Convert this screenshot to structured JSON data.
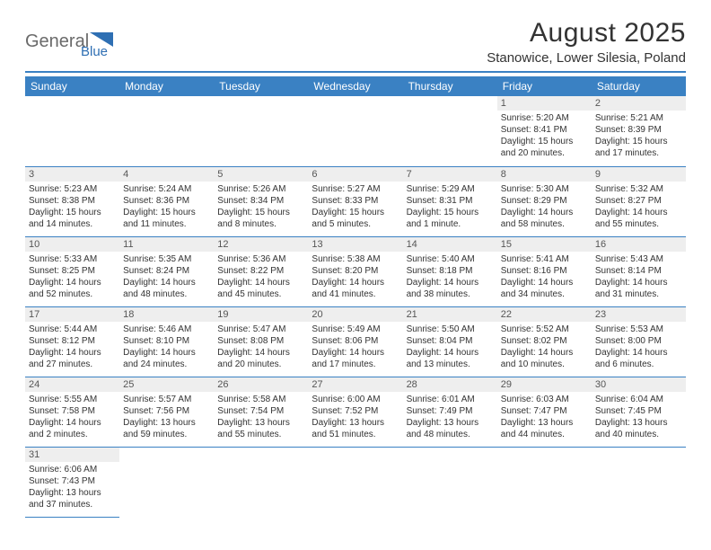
{
  "logo": {
    "text1": "General",
    "text2": "Blue",
    "color1": "#6a6a6a",
    "color2": "#2e6fb3"
  },
  "title": "August 2025",
  "subtitle": "Stanowice, Lower Silesia, Poland",
  "header_bg": "#3a81c3",
  "divider_color": "#3a81c3",
  "daynum_bg": "#eeeeee",
  "weekdays": [
    "Sunday",
    "Monday",
    "Tuesday",
    "Wednesday",
    "Thursday",
    "Friday",
    "Saturday"
  ],
  "weeks": [
    [
      null,
      null,
      null,
      null,
      null,
      {
        "n": "1",
        "sr": "5:20 AM",
        "ss": "8:41 PM",
        "dl": "15 hours and 20 minutes."
      },
      {
        "n": "2",
        "sr": "5:21 AM",
        "ss": "8:39 PM",
        "dl": "15 hours and 17 minutes."
      }
    ],
    [
      {
        "n": "3",
        "sr": "5:23 AM",
        "ss": "8:38 PM",
        "dl": "15 hours and 14 minutes."
      },
      {
        "n": "4",
        "sr": "5:24 AM",
        "ss": "8:36 PM",
        "dl": "15 hours and 11 minutes."
      },
      {
        "n": "5",
        "sr": "5:26 AM",
        "ss": "8:34 PM",
        "dl": "15 hours and 8 minutes."
      },
      {
        "n": "6",
        "sr": "5:27 AM",
        "ss": "8:33 PM",
        "dl": "15 hours and 5 minutes."
      },
      {
        "n": "7",
        "sr": "5:29 AM",
        "ss": "8:31 PM",
        "dl": "15 hours and 1 minute."
      },
      {
        "n": "8",
        "sr": "5:30 AM",
        "ss": "8:29 PM",
        "dl": "14 hours and 58 minutes."
      },
      {
        "n": "9",
        "sr": "5:32 AM",
        "ss": "8:27 PM",
        "dl": "14 hours and 55 minutes."
      }
    ],
    [
      {
        "n": "10",
        "sr": "5:33 AM",
        "ss": "8:25 PM",
        "dl": "14 hours and 52 minutes."
      },
      {
        "n": "11",
        "sr": "5:35 AM",
        "ss": "8:24 PM",
        "dl": "14 hours and 48 minutes."
      },
      {
        "n": "12",
        "sr": "5:36 AM",
        "ss": "8:22 PM",
        "dl": "14 hours and 45 minutes."
      },
      {
        "n": "13",
        "sr": "5:38 AM",
        "ss": "8:20 PM",
        "dl": "14 hours and 41 minutes."
      },
      {
        "n": "14",
        "sr": "5:40 AM",
        "ss": "8:18 PM",
        "dl": "14 hours and 38 minutes."
      },
      {
        "n": "15",
        "sr": "5:41 AM",
        "ss": "8:16 PM",
        "dl": "14 hours and 34 minutes."
      },
      {
        "n": "16",
        "sr": "5:43 AM",
        "ss": "8:14 PM",
        "dl": "14 hours and 31 minutes."
      }
    ],
    [
      {
        "n": "17",
        "sr": "5:44 AM",
        "ss": "8:12 PM",
        "dl": "14 hours and 27 minutes."
      },
      {
        "n": "18",
        "sr": "5:46 AM",
        "ss": "8:10 PM",
        "dl": "14 hours and 24 minutes."
      },
      {
        "n": "19",
        "sr": "5:47 AM",
        "ss": "8:08 PM",
        "dl": "14 hours and 20 minutes."
      },
      {
        "n": "20",
        "sr": "5:49 AM",
        "ss": "8:06 PM",
        "dl": "14 hours and 17 minutes."
      },
      {
        "n": "21",
        "sr": "5:50 AM",
        "ss": "8:04 PM",
        "dl": "14 hours and 13 minutes."
      },
      {
        "n": "22",
        "sr": "5:52 AM",
        "ss": "8:02 PM",
        "dl": "14 hours and 10 minutes."
      },
      {
        "n": "23",
        "sr": "5:53 AM",
        "ss": "8:00 PM",
        "dl": "14 hours and 6 minutes."
      }
    ],
    [
      {
        "n": "24",
        "sr": "5:55 AM",
        "ss": "7:58 PM",
        "dl": "14 hours and 2 minutes."
      },
      {
        "n": "25",
        "sr": "5:57 AM",
        "ss": "7:56 PM",
        "dl": "13 hours and 59 minutes."
      },
      {
        "n": "26",
        "sr": "5:58 AM",
        "ss": "7:54 PM",
        "dl": "13 hours and 55 minutes."
      },
      {
        "n": "27",
        "sr": "6:00 AM",
        "ss": "7:52 PM",
        "dl": "13 hours and 51 minutes."
      },
      {
        "n": "28",
        "sr": "6:01 AM",
        "ss": "7:49 PM",
        "dl": "13 hours and 48 minutes."
      },
      {
        "n": "29",
        "sr": "6:03 AM",
        "ss": "7:47 PM",
        "dl": "13 hours and 44 minutes."
      },
      {
        "n": "30",
        "sr": "6:04 AM",
        "ss": "7:45 PM",
        "dl": "13 hours and 40 minutes."
      }
    ],
    [
      {
        "n": "31",
        "sr": "6:06 AM",
        "ss": "7:43 PM",
        "dl": "13 hours and 37 minutes."
      },
      null,
      null,
      null,
      null,
      null,
      null
    ]
  ],
  "labels": {
    "sunrise": "Sunrise:",
    "sunset": "Sunset:",
    "daylight": "Daylight:"
  }
}
